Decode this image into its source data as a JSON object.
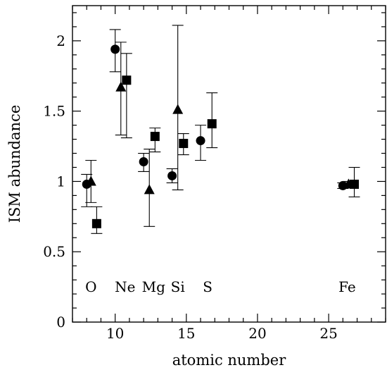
{
  "chart_data": {
    "type": "scatter",
    "xlabel": "atomic number",
    "ylabel": "ISM abundance",
    "xlim": [
      7,
      29
    ],
    "ylim": [
      0,
      2.25
    ],
    "x_ticks": [
      10,
      15,
      20,
      25
    ],
    "y_ticks": [
      0,
      0.5,
      1,
      1.5,
      2
    ],
    "x_tick_labels": [
      "10",
      "15",
      "20",
      "25"
    ],
    "y_tick_labels": [
      "0",
      "0.5",
      "1",
      "1.5",
      "2"
    ],
    "x_minor_step": 1,
    "y_minor_step": 0.1,
    "grid": false,
    "element_labels": [
      {
        "text": "O",
        "x": 8.3,
        "y": 0.25
      },
      {
        "text": "Ne",
        "x": 10.7,
        "y": 0.25
      },
      {
        "text": "Mg",
        "x": 12.7,
        "y": 0.25
      },
      {
        "text": "Si",
        "x": 14.4,
        "y": 0.25
      },
      {
        "text": "S",
        "x": 16.5,
        "y": 0.25
      },
      {
        "text": "Fe",
        "x": 26.3,
        "y": 0.25
      }
    ],
    "series": [
      {
        "marker": "circle",
        "points": [
          {
            "x": 8.0,
            "y": 0.98,
            "err_lo": 0.82,
            "err_hi": 1.05
          },
          {
            "x": 10.0,
            "y": 1.94,
            "err_lo": 1.78,
            "err_hi": 2.08
          },
          {
            "x": 12.0,
            "y": 1.14,
            "err_lo": 1.07,
            "err_hi": 1.2
          },
          {
            "x": 14.0,
            "y": 1.04,
            "err_lo": 0.99,
            "err_hi": 1.09
          },
          {
            "x": 16.0,
            "y": 1.29,
            "err_lo": 1.15,
            "err_hi": 1.4
          },
          {
            "x": 26.0,
            "y": 0.97,
            "err_lo": 0.95,
            "err_hi": 0.99
          }
        ]
      },
      {
        "marker": "triangle",
        "points": [
          {
            "x": 8.3,
            "y": 1.0,
            "err_lo": 0.85,
            "err_hi": 1.15
          },
          {
            "x": 10.4,
            "y": 1.67,
            "err_lo": 1.33,
            "err_hi": 1.99
          },
          {
            "x": 12.4,
            "y": 0.94,
            "err_lo": 0.68,
            "err_hi": 1.23
          },
          {
            "x": 14.4,
            "y": 1.51,
            "err_lo": 0.94,
            "err_hi": 2.11
          },
          {
            "x": 26.4,
            "y": 0.98,
            "err_lo": 0.96,
            "err_hi": 1.0
          }
        ]
      },
      {
        "marker": "square",
        "points": [
          {
            "x": 8.7,
            "y": 0.7,
            "err_lo": 0.63,
            "err_hi": 0.82
          },
          {
            "x": 10.8,
            "y": 1.72,
            "err_lo": 1.31,
            "err_hi": 1.91
          },
          {
            "x": 12.8,
            "y": 1.32,
            "err_lo": 1.21,
            "err_hi": 1.38
          },
          {
            "x": 14.8,
            "y": 1.27,
            "err_lo": 1.19,
            "err_hi": 1.34
          },
          {
            "x": 16.8,
            "y": 1.41,
            "err_lo": 1.24,
            "err_hi": 1.63
          },
          {
            "x": 26.8,
            "y": 0.98,
            "err_lo": 0.89,
            "err_hi": 1.1
          }
        ]
      }
    ]
  }
}
